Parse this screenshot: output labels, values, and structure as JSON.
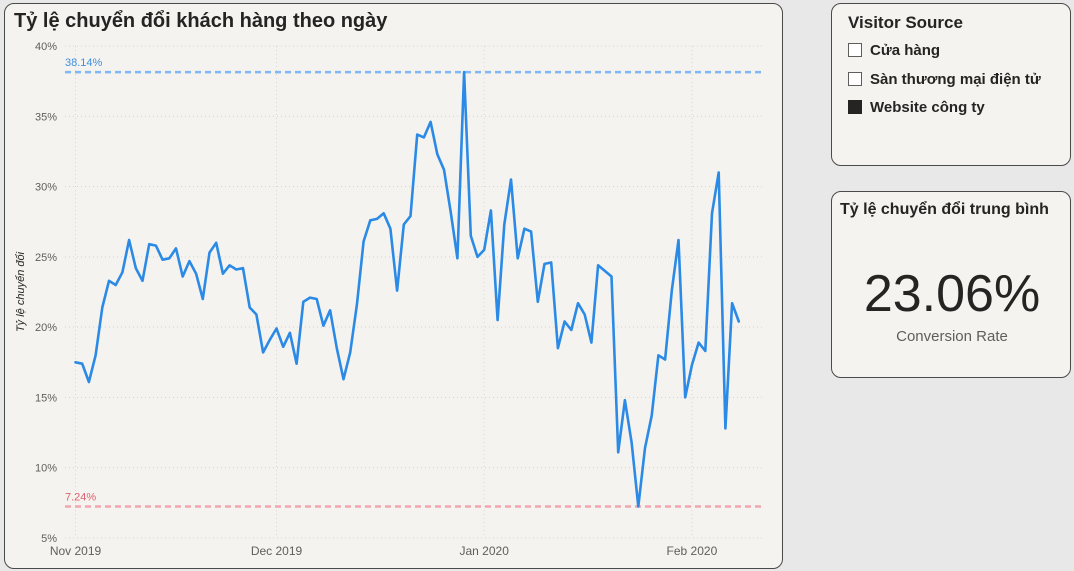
{
  "chart_card": {
    "title": "Tỷ lệ chuyển đổi khách hàng theo ngày"
  },
  "slicer": {
    "title": "Visitor Source",
    "items": [
      {
        "label": "Cửa hàng",
        "checked": false
      },
      {
        "label": "Sàn thương mại điện tử",
        "checked": false
      },
      {
        "label": "Website công ty",
        "checked": true
      }
    ]
  },
  "kpi": {
    "title": "Tỷ lệ chuyển đổi trung bình",
    "value": "23.06%",
    "label": "Conversion Rate"
  },
  "colors": {
    "line": "#2b8ae6",
    "max_line": "#7fb8f5",
    "min_line": "#f1a7b0",
    "max_text": "#3d8fe0",
    "min_text": "#e0606e"
  },
  "chart_data": {
    "type": "line",
    "title": "Tỷ lệ chuyển đổi khách hàng theo ngày",
    "xlabel": "",
    "ylabel": "Tỷ lệ chuyển đổi",
    "ylim": [
      5,
      40
    ],
    "yticks": [
      5,
      10,
      15,
      20,
      25,
      30,
      35,
      40
    ],
    "ytick_labels": [
      "5%",
      "10%",
      "15%",
      "20%",
      "25%",
      "30%",
      "35%",
      "40%"
    ],
    "xticks": [
      {
        "date": "2019-11-01",
        "label": "Nov 2019"
      },
      {
        "date": "2019-12-01",
        "label": "Dec 2019"
      },
      {
        "date": "2020-01-01",
        "label": "Jan 2020"
      },
      {
        "date": "2020-02-01",
        "label": "Feb 2020"
      }
    ],
    "grid": true,
    "reference_lines": [
      {
        "type": "max",
        "value": 38.14,
        "label": "38.14%"
      },
      {
        "type": "min",
        "value": 7.24,
        "label": "7.24%"
      }
    ],
    "x_start": "2019-11-01",
    "series": [
      {
        "values": [
          17.5,
          17.4,
          16.1,
          18.0,
          21.4,
          23.3,
          23.0,
          23.9,
          26.2,
          24.2,
          23.3,
          25.9,
          25.8,
          24.8,
          24.9,
          25.6,
          23.6,
          24.7,
          23.8,
          22.0,
          25.3,
          26.0,
          23.8,
          24.4,
          24.1,
          24.2,
          21.4,
          20.9,
          18.2,
          19.1,
          19.9,
          18.6,
          19.6,
          17.4,
          21.8,
          22.1,
          22.0,
          20.1,
          21.2,
          18.5,
          16.3,
          18.2,
          21.6,
          26.1,
          27.6,
          27.7,
          28.1,
          27.0,
          22.6,
          27.3,
          27.9,
          33.7,
          33.5,
          34.6,
          32.3,
          31.2,
          28.2,
          24.9,
          38.14,
          26.5,
          25.0,
          25.5,
          28.3,
          20.5,
          27.3,
          30.5,
          24.9,
          27.0,
          26.8,
          21.8,
          24.5,
          24.6,
          18.5,
          20.4,
          19.8,
          21.7,
          20.9,
          18.9,
          24.4,
          24.0,
          23.6,
          11.1,
          14.8,
          11.8,
          7.24,
          11.4,
          13.7,
          18.0,
          17.7,
          22.6,
          26.2,
          15.0,
          17.3,
          18.9,
          18.3,
          28.1,
          31.0,
          12.8,
          21.7,
          20.4
        ]
      }
    ]
  }
}
